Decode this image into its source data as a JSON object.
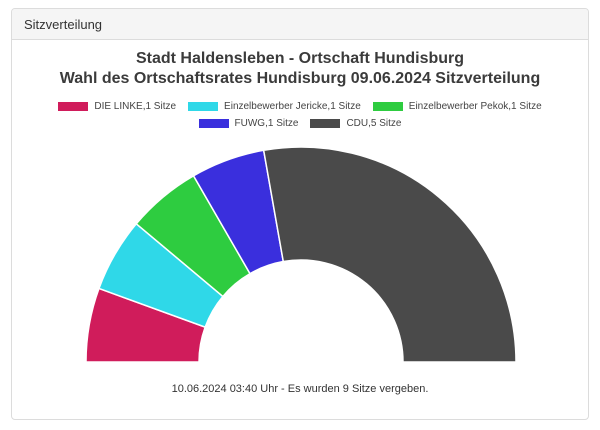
{
  "panel": {
    "header": "Sitzverteilung"
  },
  "chart_data": {
    "type": "pie",
    "subtype": "half-donut",
    "title_line1": "Stadt Haldensleben - Ortschaft Hundisburg",
    "title_line2": "Wahl des Ortschaftsrates Hundisburg 09.06.2024 Sitzverteilung",
    "legend_position": "top-center",
    "series": [
      {
        "name": "DIE LINKE,1 Sitze",
        "party": "DIE LINKE",
        "value": 1,
        "color": "#d01c5b"
      },
      {
        "name": "Einzelbewerber Jericke,1 Sitze",
        "party": "Einzelbewerber Jericke",
        "value": 1,
        "color": "#2fd8e8"
      },
      {
        "name": "Einzelbewerber Pekok,1 Sitze",
        "party": "Einzelbewerber Pekok",
        "value": 1,
        "color": "#2ecc40"
      },
      {
        "name": "FUWG,1 Sitze",
        "party": "FUWG",
        "value": 1,
        "color": "#3a2fdd"
      },
      {
        "name": "CDU,5 Sitze",
        "party": "CDU",
        "value": 5,
        "color": "#4a4a4a"
      }
    ],
    "total": 9
  },
  "footer": {
    "text": "10.06.2024 03:40 Uhr - Es wurden 9 Sitze vergeben."
  }
}
